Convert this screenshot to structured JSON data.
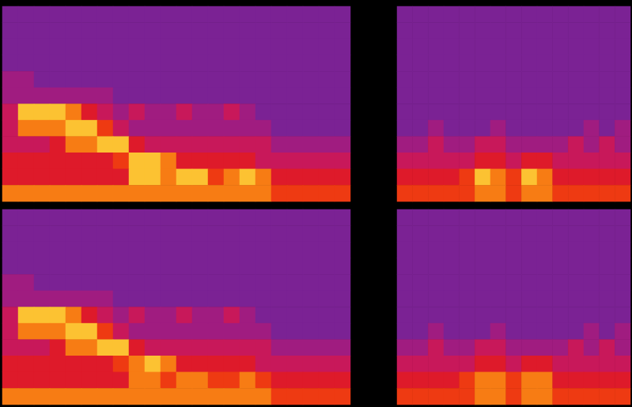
{
  "chart_data": [
    {
      "type": "heatmap",
      "tick_labels": false,
      "color_range": [
        0,
        9
      ],
      "cells": [
        [
          2,
          2,
          2,
          2,
          2,
          2,
          2,
          2,
          2,
          2,
          2,
          2,
          2,
          2,
          2,
          2,
          2,
          2,
          2,
          2,
          2,
          2
        ],
        [
          2,
          2,
          2,
          2,
          2,
          2,
          2,
          2,
          2,
          2,
          2,
          2,
          2,
          2,
          2,
          2,
          2,
          2,
          2,
          2,
          2,
          2
        ],
        [
          2,
          2,
          2,
          2,
          2,
          2,
          2,
          2,
          2,
          2,
          2,
          2,
          2,
          2,
          2,
          2,
          2,
          2,
          2,
          2,
          2,
          2
        ],
        [
          2,
          2,
          2,
          2,
          2,
          2,
          2,
          2,
          2,
          2,
          2,
          2,
          2,
          2,
          2,
          2,
          2,
          2,
          2,
          2,
          2,
          2
        ],
        [
          3,
          3,
          2,
          2,
          2,
          2,
          2,
          2,
          2,
          2,
          2,
          2,
          2,
          2,
          2,
          2,
          2,
          2,
          2,
          2,
          2,
          2
        ],
        [
          3,
          3,
          3,
          3,
          3,
          3,
          3,
          2,
          2,
          2,
          2,
          2,
          2,
          2,
          2,
          2,
          2,
          2,
          2,
          2,
          2,
          2
        ],
        [
          4,
          8,
          8,
          8,
          7,
          5,
          4,
          3,
          4,
          3,
          3,
          4,
          3,
          3,
          4,
          3,
          2,
          2,
          2,
          2,
          2,
          2
        ],
        [
          4,
          7,
          7,
          7,
          8,
          8,
          6,
          4,
          3,
          3,
          3,
          3,
          3,
          3,
          3,
          3,
          3,
          2,
          2,
          2,
          2,
          2
        ],
        [
          4,
          4,
          4,
          5,
          7,
          7,
          8,
          8,
          5,
          4,
          4,
          4,
          4,
          4,
          4,
          4,
          4,
          3,
          3,
          3,
          3,
          3
        ],
        [
          5,
          5,
          5,
          5,
          5,
          5,
          5,
          6,
          8,
          8,
          7,
          5,
          5,
          5,
          5,
          5,
          4,
          4,
          4,
          4,
          4,
          4
        ],
        [
          5,
          5,
          5,
          5,
          5,
          5,
          5,
          5,
          8,
          8,
          7,
          8,
          8,
          6,
          7,
          8,
          7,
          5,
          5,
          5,
          5,
          5
        ],
        [
          7,
          7,
          7,
          7,
          7,
          7,
          7,
          7,
          7,
          7,
          7,
          7,
          7,
          7,
          7,
          7,
          7,
          6,
          6,
          6,
          6,
          6
        ]
      ]
    },
    {
      "type": "heatmap",
      "tick_labels": false,
      "color_range": [
        0,
        9
      ],
      "cells": [
        [
          2,
          2,
          2,
          2,
          2,
          2,
          2,
          2,
          2,
          2,
          2,
          2,
          2,
          2,
          2
        ],
        [
          2,
          2,
          2,
          2,
          2,
          2,
          2,
          2,
          2,
          2,
          2,
          2,
          2,
          2,
          2
        ],
        [
          2,
          2,
          2,
          2,
          2,
          2,
          2,
          2,
          2,
          2,
          2,
          2,
          2,
          2,
          2
        ],
        [
          2,
          2,
          2,
          2,
          2,
          2,
          2,
          2,
          2,
          2,
          2,
          2,
          2,
          2,
          2
        ],
        [
          2,
          2,
          2,
          2,
          2,
          2,
          2,
          2,
          2,
          2,
          2,
          2,
          2,
          2,
          2
        ],
        [
          2,
          2,
          2,
          2,
          2,
          2,
          2,
          2,
          2,
          2,
          2,
          2,
          2,
          2,
          2
        ],
        [
          2,
          2,
          2,
          2,
          2,
          2,
          2,
          2,
          2,
          2,
          2,
          2,
          2,
          2,
          2
        ],
        [
          2,
          2,
          3,
          2,
          2,
          2,
          3,
          2,
          2,
          2,
          2,
          2,
          3,
          2,
          3
        ],
        [
          3,
          3,
          4,
          3,
          3,
          4,
          4,
          3,
          3,
          3,
          3,
          4,
          3,
          4,
          3
        ],
        [
          4,
          4,
          4,
          4,
          4,
          5,
          5,
          4,
          5,
          5,
          4,
          4,
          4,
          4,
          4
        ],
        [
          5,
          5,
          5,
          5,
          6,
          8,
          7,
          6,
          8,
          7,
          5,
          5,
          5,
          5,
          5
        ],
        [
          6,
          6,
          6,
          6,
          6,
          7,
          7,
          6,
          7,
          7,
          6,
          6,
          6,
          6,
          6
        ]
      ]
    },
    {
      "type": "heatmap",
      "tick_labels": false,
      "color_range": [
        0,
        9
      ],
      "cells": [
        [
          2,
          2,
          2,
          2,
          2,
          2,
          2,
          2,
          2,
          2,
          2,
          2,
          2,
          2,
          2,
          2,
          2,
          2,
          2,
          2,
          2,
          2
        ],
        [
          2,
          2,
          2,
          2,
          2,
          2,
          2,
          2,
          2,
          2,
          2,
          2,
          2,
          2,
          2,
          2,
          2,
          2,
          2,
          2,
          2,
          2
        ],
        [
          2,
          2,
          2,
          2,
          2,
          2,
          2,
          2,
          2,
          2,
          2,
          2,
          2,
          2,
          2,
          2,
          2,
          2,
          2,
          2,
          2,
          2
        ],
        [
          2,
          2,
          2,
          2,
          2,
          2,
          2,
          2,
          2,
          2,
          2,
          2,
          2,
          2,
          2,
          2,
          2,
          2,
          2,
          2,
          2,
          2
        ],
        [
          3,
          3,
          2,
          2,
          2,
          2,
          2,
          2,
          2,
          2,
          2,
          2,
          2,
          2,
          2,
          2,
          2,
          2,
          2,
          2,
          2,
          2
        ],
        [
          3,
          3,
          3,
          3,
          3,
          3,
          3,
          2,
          2,
          2,
          2,
          2,
          2,
          2,
          2,
          2,
          2,
          2,
          2,
          2,
          2,
          2
        ],
        [
          4,
          8,
          8,
          8,
          7,
          5,
          4,
          3,
          4,
          3,
          3,
          4,
          3,
          3,
          4,
          3,
          2,
          2,
          2,
          2,
          2,
          2
        ],
        [
          4,
          7,
          7,
          7,
          8,
          8,
          6,
          4,
          3,
          3,
          3,
          3,
          3,
          3,
          3,
          3,
          3,
          2,
          2,
          2,
          2,
          2
        ],
        [
          4,
          4,
          4,
          5,
          7,
          7,
          8,
          8,
          5,
          4,
          4,
          4,
          4,
          4,
          4,
          4,
          4,
          3,
          3,
          3,
          3,
          3
        ],
        [
          5,
          5,
          5,
          5,
          5,
          5,
          5,
          6,
          7,
          8,
          7,
          5,
          5,
          5,
          5,
          5,
          4,
          4,
          4,
          4,
          4,
          4
        ],
        [
          5,
          5,
          5,
          5,
          5,
          5,
          5,
          5,
          7,
          7,
          6,
          7,
          7,
          6,
          6,
          7,
          6,
          5,
          5,
          5,
          5,
          5
        ],
        [
          7,
          7,
          7,
          7,
          7,
          7,
          7,
          7,
          7,
          7,
          7,
          7,
          7,
          7,
          7,
          7,
          7,
          6,
          6,
          6,
          6,
          6
        ]
      ]
    },
    {
      "type": "heatmap",
      "tick_labels": false,
      "color_range": [
        0,
        9
      ],
      "cells": [
        [
          2,
          2,
          2,
          2,
          2,
          2,
          2,
          2,
          2,
          2,
          2,
          2,
          2,
          2,
          2
        ],
        [
          2,
          2,
          2,
          2,
          2,
          2,
          2,
          2,
          2,
          2,
          2,
          2,
          2,
          2,
          2
        ],
        [
          2,
          2,
          2,
          2,
          2,
          2,
          2,
          2,
          2,
          2,
          2,
          2,
          2,
          2,
          2
        ],
        [
          2,
          2,
          2,
          2,
          2,
          2,
          2,
          2,
          2,
          2,
          2,
          2,
          2,
          2,
          2
        ],
        [
          2,
          2,
          2,
          2,
          2,
          2,
          2,
          2,
          2,
          2,
          2,
          2,
          2,
          2,
          2
        ],
        [
          2,
          2,
          2,
          2,
          2,
          2,
          2,
          2,
          2,
          2,
          2,
          2,
          2,
          2,
          2
        ],
        [
          2,
          2,
          2,
          2,
          2,
          2,
          2,
          2,
          2,
          2,
          2,
          2,
          2,
          2,
          2
        ],
        [
          2,
          2,
          3,
          2,
          2,
          2,
          3,
          2,
          2,
          2,
          2,
          2,
          3,
          2,
          3
        ],
        [
          3,
          3,
          4,
          3,
          3,
          4,
          4,
          3,
          3,
          3,
          3,
          4,
          3,
          4,
          3
        ],
        [
          4,
          4,
          4,
          4,
          4,
          5,
          5,
          4,
          5,
          5,
          4,
          4,
          4,
          4,
          4
        ],
        [
          5,
          5,
          5,
          5,
          6,
          7,
          7,
          6,
          7,
          7,
          5,
          5,
          5,
          5,
          5
        ],
        [
          6,
          6,
          6,
          6,
          6,
          7,
          7,
          6,
          7,
          7,
          6,
          6,
          6,
          6,
          6
        ]
      ]
    }
  ]
}
